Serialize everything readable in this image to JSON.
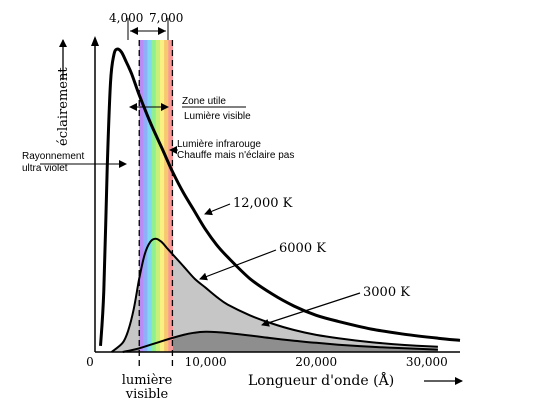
{
  "chart_data": {
    "type": "line",
    "xlabel": "Longueur d'onde (Å)",
    "ylabel": "éclairement",
    "x_ticks": [
      0,
      10000,
      20000,
      30000
    ],
    "x_tick_labels": [
      "0",
      "10,000",
      "20,000",
      "30,000"
    ],
    "xlim": [
      0,
      33000
    ],
    "ylim": [
      0,
      1
    ],
    "visible_range": {
      "min": 4000,
      "max": 7000,
      "min_label": "4,000",
      "max_label": "7,000",
      "bottom_label_line1": "lumière",
      "bottom_label_line2": "visible"
    },
    "spectrum_colors": [
      "#b98cf5",
      "#8fb0f8",
      "#80d8f0",
      "#90f090",
      "#c8f078",
      "#f8f080",
      "#f8c870",
      "#f89898"
    ],
    "series": [
      {
        "name": "12,000 K",
        "x": [
          500,
          800,
          1100,
          1400,
          1700,
          2000,
          2400,
          2800,
          3300,
          4000,
          5000,
          6000,
          7000,
          8000,
          9000,
          10000,
          11000,
          12000,
          14000,
          16000,
          18000,
          20000,
          22000,
          25000,
          28000,
          31000,
          33000
        ],
        "y": [
          0.02,
          0.2,
          0.6,
          0.88,
          0.97,
          0.99,
          0.98,
          0.95,
          0.91,
          0.84,
          0.75,
          0.67,
          0.59,
          0.52,
          0.46,
          0.4,
          0.35,
          0.31,
          0.24,
          0.19,
          0.15,
          0.12,
          0.1,
          0.075,
          0.058,
          0.045,
          0.038
        ],
        "fill": false
      },
      {
        "name": "6000 K",
        "x": [
          1500,
          2500,
          3000,
          3500,
          4000,
          4500,
          5000,
          5500,
          6000,
          6500,
          7000,
          8000,
          9000,
          10000,
          11000,
          12000,
          14000,
          16000,
          18000,
          20000,
          22000,
          25000,
          28000,
          31000
        ],
        "y": [
          0.0,
          0.03,
          0.07,
          0.14,
          0.24,
          0.32,
          0.36,
          0.37,
          0.36,
          0.34,
          0.32,
          0.28,
          0.24,
          0.21,
          0.18,
          0.155,
          0.12,
          0.093,
          0.072,
          0.056,
          0.045,
          0.032,
          0.023,
          0.017
        ],
        "fill": "#c6c6c6"
      },
      {
        "name": "3000 K",
        "x": [
          2500,
          4000,
          6000,
          8000,
          9000,
          10000,
          11000,
          12000,
          14000,
          16000,
          18000,
          20000,
          22000,
          25000,
          28000,
          31000
        ],
        "y": [
          0.0,
          0.012,
          0.035,
          0.056,
          0.063,
          0.066,
          0.065,
          0.062,
          0.054,
          0.045,
          0.037,
          0.03,
          0.024,
          0.017,
          0.012,
          0.008
        ],
        "fill": "#8e8e8e"
      }
    ],
    "annotations": {
      "zone_utile": "Zone utile",
      "lumiere_visible": "Lumière visible",
      "infrarouge_line1": "Lumière infrarouge",
      "infrarouge_line2": "Chauffe mais n'éclaire pas",
      "uv_line1": "Rayonnement",
      "uv_line2": "ultra violet"
    }
  }
}
